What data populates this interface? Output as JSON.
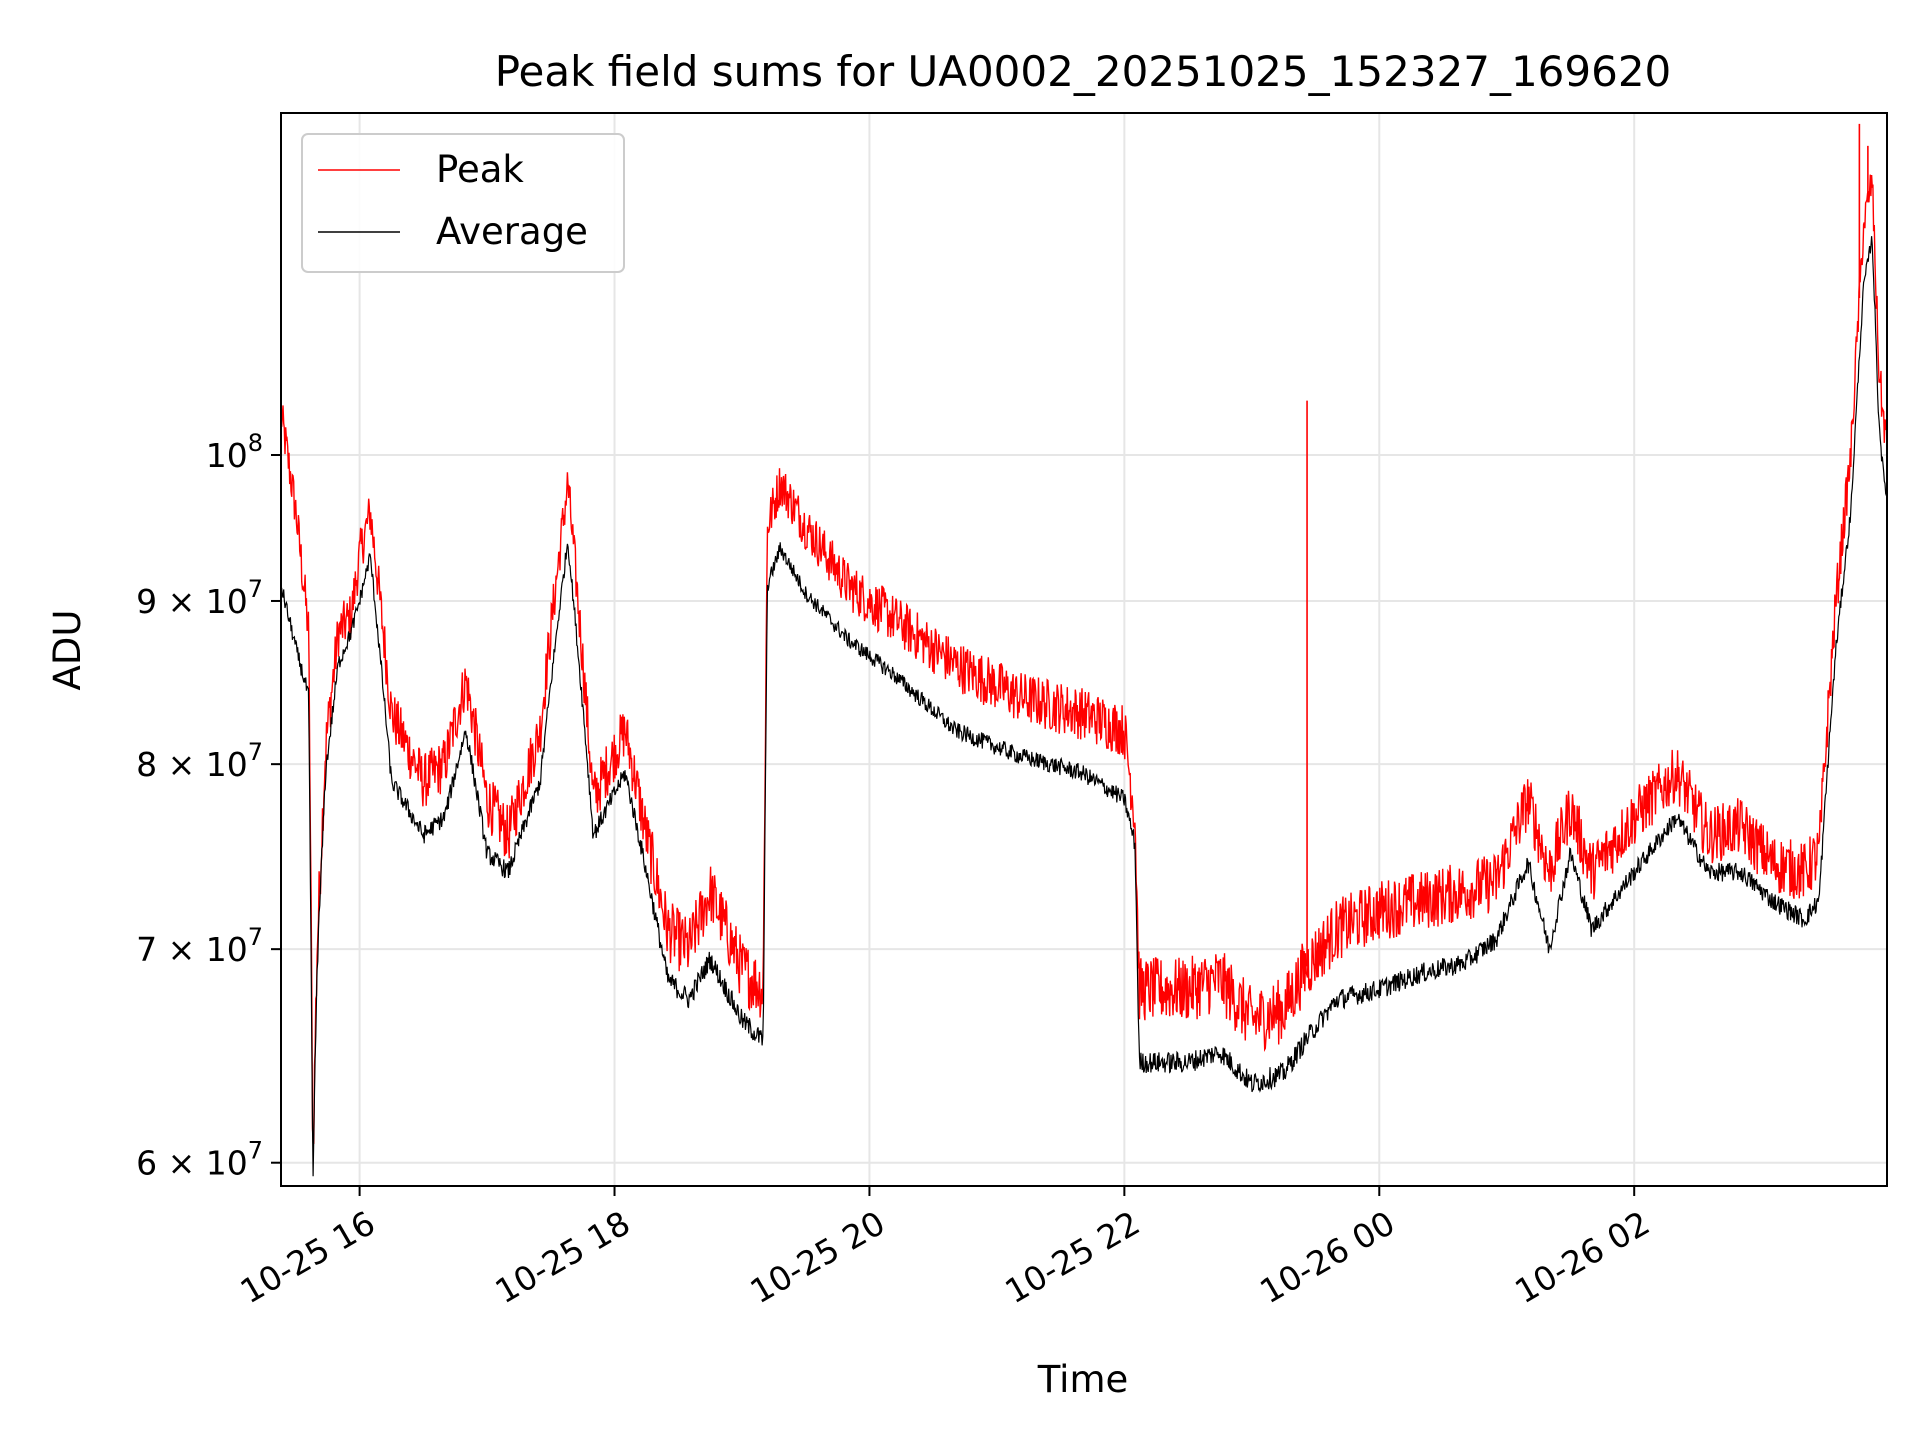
{
  "chart_data": {
    "type": "line",
    "title": "Peak field sums for UA0002_20251025_152327_169620",
    "xlabel": "Time",
    "ylabel": "ADU",
    "yscale": "log",
    "grid": true,
    "legend_position": "top-left",
    "x_ticks": [
      "10-25 16",
      "10-25 18",
      "10-25 20",
      "10-25 22",
      "10-26 00",
      "10-26 02"
    ],
    "x_tick_times": [
      "2025-10-25 16:00",
      "2025-10-25 18:00",
      "2025-10-25 20:00",
      "2025-10-25 22:00",
      "2025-10-26 00:00",
      "2025-10-26 02:00"
    ],
    "xlim": [
      "2025-10-25 15:23",
      "2025-10-26 03:59"
    ],
    "y_ticks": [
      {
        "value": 60000000,
        "mantissa": "6",
        "exponent": "7"
      },
      {
        "value": 70000000,
        "mantissa": "7",
        "exponent": "7"
      },
      {
        "value": 80000000,
        "mantissa": "8",
        "exponent": "7"
      },
      {
        "value": 90000000,
        "mantissa": "9",
        "exponent": "7"
      },
      {
        "value": 100000000,
        "mantissa": "",
        "exponent": "8"
      }
    ],
    "ylim": [
      59000000,
      128000000
    ],
    "series": [
      {
        "name": "Peak",
        "color": "#ff0000",
        "noise": 1600000,
        "points": [
          [
            "2025-10-25 15:23",
            103000000
          ],
          [
            "2025-10-25 15:30",
            96000000
          ],
          [
            "2025-10-25 15:36",
            88000000
          ],
          [
            "2025-10-25 15:38",
            60000000
          ],
          [
            "2025-10-25 15:40",
            70000000
          ],
          [
            "2025-10-25 15:44",
            81000000
          ],
          [
            "2025-10-25 15:50",
            88000000
          ],
          [
            "2025-10-25 15:56",
            89000000
          ],
          [
            "2025-10-25 16:00",
            93000000
          ],
          [
            "2025-10-25 16:05",
            96000000
          ],
          [
            "2025-10-25 16:15",
            83000000
          ],
          [
            "2025-10-25 16:30",
            79000000
          ],
          [
            "2025-10-25 16:40",
            80000000
          ],
          [
            "2025-10-25 16:50",
            85000000
          ],
          [
            "2025-10-25 17:00",
            78000000
          ],
          [
            "2025-10-25 17:10",
            76000000
          ],
          [
            "2025-10-25 17:25",
            82000000
          ],
          [
            "2025-10-25 17:38",
            98000000
          ],
          [
            "2025-10-25 17:50",
            78000000
          ],
          [
            "2025-10-25 18:05",
            82000000
          ],
          [
            "2025-10-25 18:15",
            76000000
          ],
          [
            "2025-10-25 18:25",
            71000000
          ],
          [
            "2025-10-25 18:35",
            70000000
          ],
          [
            "2025-10-25 18:45",
            73000000
          ],
          [
            "2025-10-25 19:00",
            69000000
          ],
          [
            "2025-10-25 19:10",
            68000000
          ],
          [
            "2025-10-25 19:12",
            95000000
          ],
          [
            "2025-10-25 19:18",
            98000000
          ],
          [
            "2025-10-25 19:30",
            95000000
          ],
          [
            "2025-10-25 19:50",
            91000000
          ],
          [
            "2025-10-25 20:10",
            89000000
          ],
          [
            "2025-10-25 20:40",
            86000000
          ],
          [
            "2025-10-25 21:10",
            84000000
          ],
          [
            "2025-10-25 21:40",
            83000000
          ],
          [
            "2025-10-25 22:00",
            82000000
          ],
          [
            "2025-10-25 22:05",
            77000000
          ],
          [
            "2025-10-25 22:07",
            68000000
          ],
          [
            "2025-10-25 22:30",
            68000000
          ],
          [
            "2025-10-25 22:45",
            68500000
          ],
          [
            "2025-10-25 23:00",
            66500000
          ],
          [
            "2025-10-25 23:15",
            67000000
          ],
          [
            "2025-10-25 23:25",
            69000000
          ],
          [
            "2025-10-25 23:40",
            71000000
          ],
          [
            "2025-10-26 00:00",
            72000000
          ],
          [
            "2025-10-26 00:20",
            72500000
          ],
          [
            "2025-10-26 00:40",
            73000000
          ],
          [
            "2025-10-26 00:55",
            73500000
          ],
          [
            "2025-10-26 01:10",
            78000000
          ],
          [
            "2025-10-26 01:20",
            74000000
          ],
          [
            "2025-10-26 01:30",
            77500000
          ],
          [
            "2025-10-26 01:40",
            74000000
          ],
          [
            "2025-10-26 02:00",
            77000000
          ],
          [
            "2025-10-26 02:20",
            79500000
          ],
          [
            "2025-10-26 02:35",
            76000000
          ],
          [
            "2025-10-26 02:50",
            76500000
          ],
          [
            "2025-10-26 03:05",
            74500000
          ],
          [
            "2025-10-26 03:20",
            74000000
          ],
          [
            "2025-10-26 03:27",
            75000000
          ],
          [
            "2025-10-26 03:35",
            90000000
          ],
          [
            "2025-10-26 03:42",
            100000000
          ],
          [
            "2025-10-26 03:48",
            118000000
          ],
          [
            "2025-10-26 03:52",
            122000000
          ],
          [
            "2025-10-26 03:55",
            107000000
          ],
          [
            "2025-10-26 03:57",
            103000000
          ],
          [
            "2025-10-26 03:59",
            101000000
          ]
        ],
        "spikes": [
          [
            "2025-10-25 23:26",
            104000000
          ],
          [
            "2025-10-26 03:46",
            127000000
          ],
          [
            "2025-10-26 03:50",
            125000000
          ]
        ]
      },
      {
        "name": "Average",
        "color": "#000000",
        "noise": 500000,
        "points": [
          [
            "2025-10-25 15:23",
            91000000
          ],
          [
            "2025-10-25 15:30",
            87000000
          ],
          [
            "2025-10-25 15:36",
            84000000
          ],
          [
            "2025-10-25 15:38",
            59000000
          ],
          [
            "2025-10-25 15:40",
            69000000
          ],
          [
            "2025-10-25 15:44",
            79500000
          ],
          [
            "2025-10-25 15:50",
            86000000
          ],
          [
            "2025-10-25 15:56",
            88000000
          ],
          [
            "2025-10-25 16:00",
            90000000
          ],
          [
            "2025-10-25 16:05",
            93000000
          ],
          [
            "2025-10-25 16:15",
            79000000
          ],
          [
            "2025-10-25 16:30",
            76000000
          ],
          [
            "2025-10-25 16:40",
            77000000
          ],
          [
            "2025-10-25 16:50",
            82000000
          ],
          [
            "2025-10-25 17:00",
            75000000
          ],
          [
            "2025-10-25 17:10",
            74000000
          ],
          [
            "2025-10-25 17:25",
            79000000
          ],
          [
            "2025-10-25 17:38",
            94000000
          ],
          [
            "2025-10-25 17:50",
            76000000
          ],
          [
            "2025-10-25 18:05",
            79500000
          ],
          [
            "2025-10-25 18:15",
            74000000
          ],
          [
            "2025-10-25 18:25",
            68500000
          ],
          [
            "2025-10-25 18:35",
            67500000
          ],
          [
            "2025-10-25 18:45",
            69500000
          ],
          [
            "2025-10-25 19:00",
            66500000
          ],
          [
            "2025-10-25 19:10",
            65500000
          ],
          [
            "2025-10-25 19:12",
            91000000
          ],
          [
            "2025-10-25 19:18",
            93500000
          ],
          [
            "2025-10-25 19:30",
            90500000
          ],
          [
            "2025-10-25 19:50",
            87500000
          ],
          [
            "2025-10-25 20:10",
            85500000
          ],
          [
            "2025-10-25 20:40",
            82000000
          ],
          [
            "2025-10-25 21:10",
            80500000
          ],
          [
            "2025-10-25 21:40",
            79500000
          ],
          [
            "2025-10-25 22:00",
            78000000
          ],
          [
            "2025-10-25 22:05",
            75500000
          ],
          [
            "2025-10-25 22:07",
            64500000
          ],
          [
            "2025-10-25 22:30",
            64500000
          ],
          [
            "2025-10-25 22:45",
            65000000
          ],
          [
            "2025-10-25 23:00",
            63500000
          ],
          [
            "2025-10-25 23:15",
            64000000
          ],
          [
            "2025-10-25 23:25",
            65500000
          ],
          [
            "2025-10-25 23:40",
            67500000
          ],
          [
            "2025-10-26 00:00",
            68000000
          ],
          [
            "2025-10-26 00:20",
            68800000
          ],
          [
            "2025-10-26 00:40",
            69300000
          ],
          [
            "2025-10-26 00:55",
            70500000
          ],
          [
            "2025-10-26 01:10",
            74500000
          ],
          [
            "2025-10-26 01:20",
            70000000
          ],
          [
            "2025-10-26 01:30",
            75000000
          ],
          [
            "2025-10-26 01:40",
            71000000
          ],
          [
            "2025-10-26 02:00",
            74000000
          ],
          [
            "2025-10-26 02:20",
            77000000
          ],
          [
            "2025-10-26 02:35",
            74000000
          ],
          [
            "2025-10-26 02:50",
            74000000
          ],
          [
            "2025-10-26 03:05",
            72500000
          ],
          [
            "2025-10-26 03:20",
            71500000
          ],
          [
            "2025-10-26 03:27",
            72500000
          ],
          [
            "2025-10-26 03:35",
            87000000
          ],
          [
            "2025-10-26 03:42",
            96000000
          ],
          [
            "2025-10-26 03:48",
            113000000
          ],
          [
            "2025-10-26 03:52",
            117000000
          ],
          [
            "2025-10-26 03:55",
            103000000
          ],
          [
            "2025-10-26 03:57",
            99000000
          ],
          [
            "2025-10-26 03:59",
            97000000
          ]
        ],
        "spikes": []
      }
    ]
  }
}
